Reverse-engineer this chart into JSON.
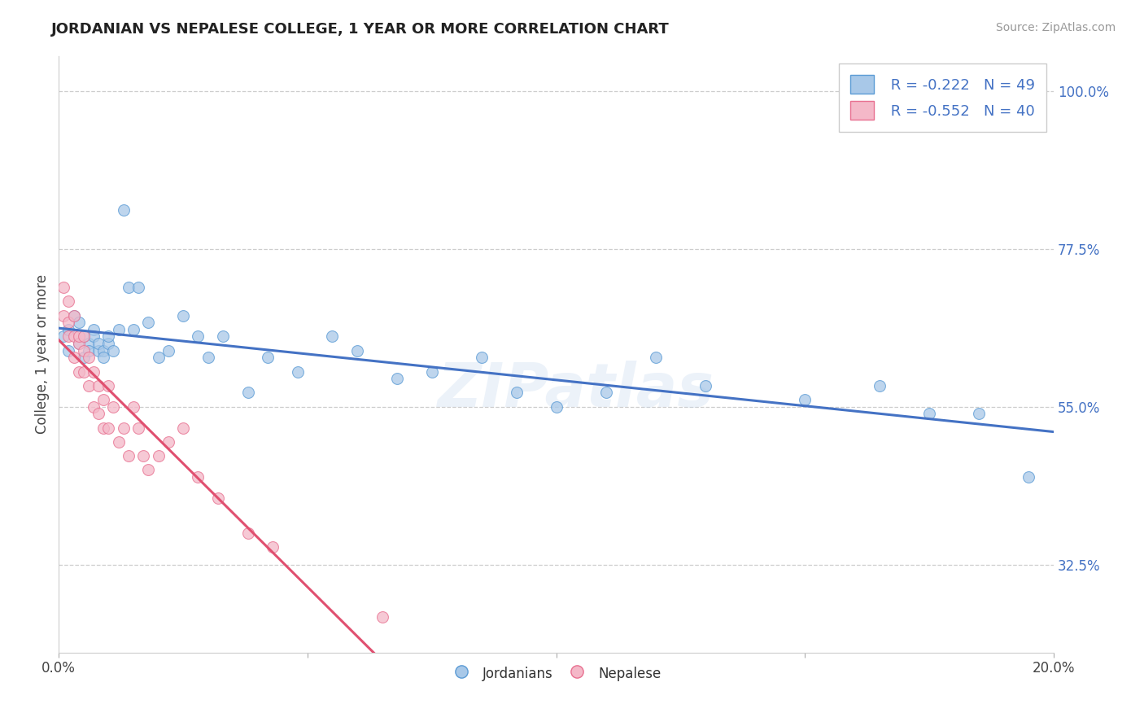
{
  "title": "JORDANIAN VS NEPALESE COLLEGE, 1 YEAR OR MORE CORRELATION CHART",
  "source": "Source: ZipAtlas.com",
  "ylabel": "College, 1 year or more",
  "xlim": [
    0.0,
    0.2
  ],
  "ylim": [
    0.2,
    1.05
  ],
  "xtick_positions": [
    0.0,
    0.05,
    0.1,
    0.15,
    0.2
  ],
  "xtick_labels": [
    "0.0%",
    "",
    "",
    "",
    "20.0%"
  ],
  "ytick_values_right": [
    1.0,
    0.775,
    0.55,
    0.325
  ],
  "ytick_labels_right": [
    "100.0%",
    "77.5%",
    "55.0%",
    "32.5%"
  ],
  "legend_labels": [
    "Jordanians",
    "Nepalese"
  ],
  "legend_r": [
    "R = -0.222",
    "R = -0.552"
  ],
  "legend_n": [
    "N = 49",
    "N = 40"
  ],
  "blue_scatter_color": "#A8C8E8",
  "blue_edge_color": "#5B9BD5",
  "pink_scatter_color": "#F4B8C8",
  "pink_edge_color": "#E87090",
  "blue_line_color": "#4472C4",
  "pink_line_color": "#E05070",
  "dash_gray_color": "#BBBBBB",
  "background_color": "#FFFFFF",
  "grid_color": "#C8C8C8",
  "jordanian_x": [
    0.001,
    0.002,
    0.002,
    0.003,
    0.004,
    0.004,
    0.005,
    0.005,
    0.006,
    0.006,
    0.007,
    0.007,
    0.008,
    0.008,
    0.009,
    0.009,
    0.01,
    0.01,
    0.011,
    0.012,
    0.013,
    0.014,
    0.015,
    0.016,
    0.018,
    0.02,
    0.022,
    0.025,
    0.028,
    0.03,
    0.033,
    0.038,
    0.042,
    0.048,
    0.055,
    0.06,
    0.068,
    0.075,
    0.085,
    0.092,
    0.1,
    0.11,
    0.12,
    0.13,
    0.15,
    0.165,
    0.175,
    0.185,
    0.195
  ],
  "jordanian_y": [
    0.65,
    0.63,
    0.66,
    0.68,
    0.64,
    0.67,
    0.62,
    0.65,
    0.64,
    0.63,
    0.66,
    0.65,
    0.63,
    0.64,
    0.63,
    0.62,
    0.64,
    0.65,
    0.63,
    0.66,
    0.83,
    0.72,
    0.66,
    0.72,
    0.67,
    0.62,
    0.63,
    0.68,
    0.65,
    0.62,
    0.65,
    0.57,
    0.62,
    0.6,
    0.65,
    0.63,
    0.59,
    0.6,
    0.62,
    0.57,
    0.55,
    0.57,
    0.62,
    0.58,
    0.56,
    0.58,
    0.54,
    0.54,
    0.45
  ],
  "nepalese_x": [
    0.001,
    0.001,
    0.002,
    0.002,
    0.002,
    0.003,
    0.003,
    0.003,
    0.004,
    0.004,
    0.004,
    0.005,
    0.005,
    0.005,
    0.006,
    0.006,
    0.007,
    0.007,
    0.008,
    0.008,
    0.009,
    0.009,
    0.01,
    0.01,
    0.011,
    0.012,
    0.013,
    0.014,
    0.015,
    0.016,
    0.017,
    0.018,
    0.02,
    0.022,
    0.025,
    0.028,
    0.032,
    0.038,
    0.043,
    0.065
  ],
  "nepalese_y": [
    0.72,
    0.68,
    0.7,
    0.65,
    0.67,
    0.65,
    0.62,
    0.68,
    0.64,
    0.6,
    0.65,
    0.63,
    0.6,
    0.65,
    0.62,
    0.58,
    0.6,
    0.55,
    0.58,
    0.54,
    0.56,
    0.52,
    0.58,
    0.52,
    0.55,
    0.5,
    0.52,
    0.48,
    0.55,
    0.52,
    0.48,
    0.46,
    0.48,
    0.5,
    0.52,
    0.45,
    0.42,
    0.37,
    0.35,
    0.25
  ]
}
